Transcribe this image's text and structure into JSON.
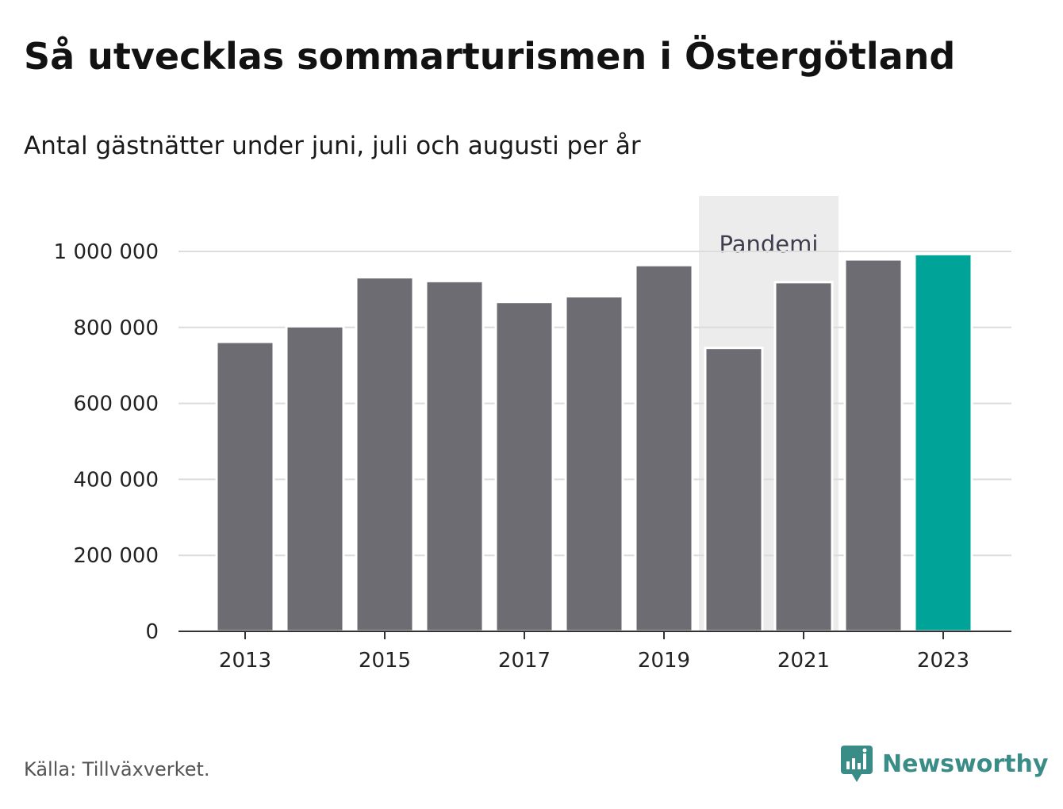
{
  "title": "Så utvecklas sommarturismen i Östergötland",
  "subtitle": "Antal gästnätter under juni, juli och augusti per år",
  "source": "Källa: Tillväxverket.",
  "brand": "Newsworthy",
  "colors": {
    "bar": "#6d6c72",
    "highlight": "#00a398",
    "band": "#ececec",
    "grid": "#dcdcdc",
    "axis": "#333333",
    "brand": "#3a8c87"
  },
  "chart_data": {
    "type": "bar",
    "categories": [
      "2013",
      "2014",
      "2015",
      "2016",
      "2017",
      "2018",
      "2019",
      "2020",
      "2021",
      "2022",
      "2023"
    ],
    "values": [
      762000,
      803000,
      932000,
      922000,
      867000,
      882000,
      964000,
      746000,
      919000,
      979000,
      993000
    ],
    "highlight_category": "2023",
    "ylim": [
      0,
      1000000
    ],
    "yticks": [
      0,
      200000,
      400000,
      600000,
      800000,
      1000000
    ],
    "ytick_labels": [
      "0",
      "200 000",
      "400 000",
      "600 000",
      "800 000",
      "1 000 000"
    ],
    "xtick_labels": [
      "2013",
      "2015",
      "2017",
      "2019",
      "2021",
      "2023"
    ],
    "annotation": {
      "label": "Pandemi",
      "from": "2020",
      "to": "2021"
    },
    "grid": true,
    "legend": "none",
    "xlabel": "",
    "ylabel": ""
  }
}
